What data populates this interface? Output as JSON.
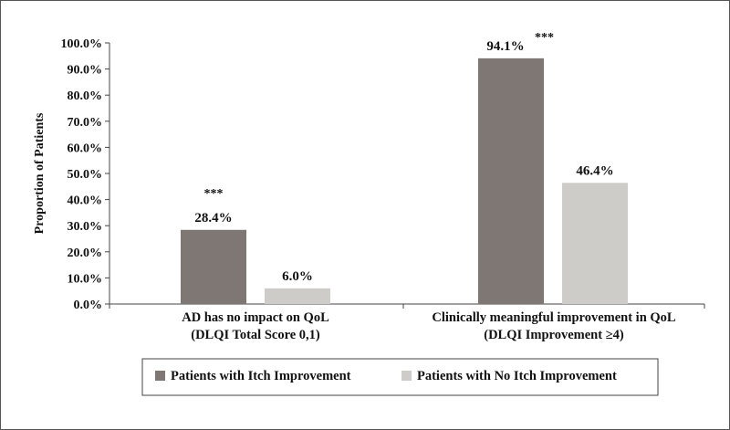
{
  "chart_data": {
    "type": "bar",
    "title": "",
    "ylabel": "Proportion of Patients",
    "ylim": [
      0,
      100
    ],
    "yticks": [
      "0.0%",
      "10.0%",
      "20.0%",
      "30.0%",
      "40.0%",
      "50.0%",
      "60.0%",
      "70.0%",
      "80.0%",
      "90.0%",
      "100.0%"
    ],
    "categories": [
      {
        "line1": "AD has no impact on QoL",
        "line2": "(DLQI Total Score 0,1)"
      },
      {
        "line1": "Clinically meaningful improvement in QoL",
        "line2": "(DLQI Improvement ≥4)"
      }
    ],
    "series": [
      {
        "name": "Patients with Itch Improvement",
        "color": "#7f7774",
        "values": [
          28.4,
          94.1
        ],
        "labels": [
          "28.4%",
          "94.1%"
        ],
        "significance": [
          "***",
          "***"
        ]
      },
      {
        "name": "Patients with No Itch Improvement",
        "color": "#cdccc8",
        "values": [
          6.0,
          46.4
        ],
        "labels": [
          "6.0%",
          "46.4%"
        ],
        "significance": [
          "",
          ""
        ]
      }
    ],
    "grid": false,
    "legend_position": "bottom"
  }
}
